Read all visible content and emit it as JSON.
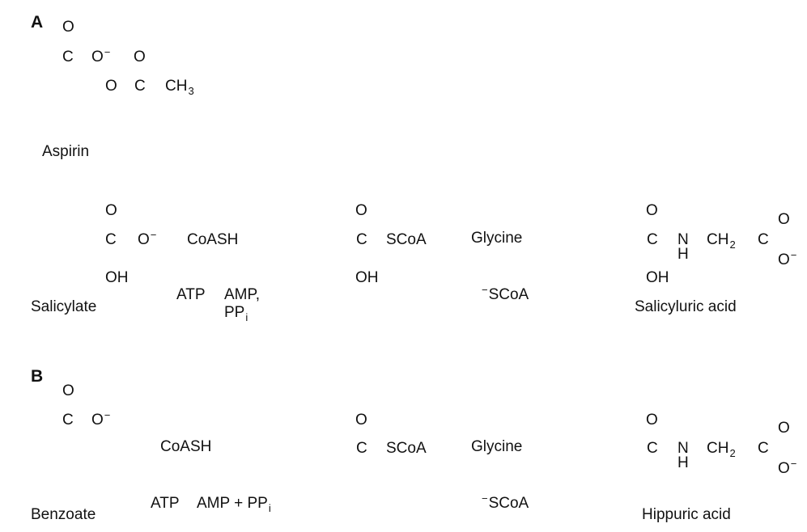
{
  "panel_a": {
    "letter": "A",
    "aspirin": {
      "o_top": "O",
      "c1": "C",
      "o_minus_base": "O",
      "minus": "−",
      "o_carbonyl": "O",
      "o_ester": "O",
      "c2": "C",
      "ch3_base": "CH",
      "ch3_sub": "3",
      "name": "Aspirin"
    },
    "salicylate": {
      "o_top": "O",
      "c": "C",
      "o_minus_base": "O",
      "minus": "−",
      "oh": "OH",
      "name": "Salicylate"
    },
    "reaction1": {
      "coash": "CoASH",
      "atp": "ATP",
      "amp": "AMP,",
      "ppi_base": "PP",
      "ppi_sub": "i"
    },
    "salicyl_coa": {
      "o_top": "O",
      "c": "C",
      "scoa": "SCoA",
      "oh": "OH"
    },
    "reaction2": {
      "glycine": "Glycine",
      "scoa_minus": "−",
      "scoa_base": "SCoA"
    },
    "salicyluric": {
      "o_top": "O",
      "c": "C",
      "n": "N",
      "h": "H",
      "ch2_base": "CH",
      "ch2_sub": "2",
      "c2": "C",
      "o_right": "O",
      "o_minus_base": "O",
      "minus": "−",
      "oh": "OH",
      "name": "Salicyluric acid"
    }
  },
  "panel_b": {
    "letter": "B",
    "benzoate": {
      "o_top": "O",
      "c": "C",
      "o_minus_base": "O",
      "minus": "−",
      "name": "Benzoate"
    },
    "reaction1": {
      "coash": "CoASH",
      "atp": "ATP",
      "amp_ppi_base": "AMP + PP",
      "ppi_sub": "i"
    },
    "benzoyl_coa": {
      "o_top": "O",
      "c": "C",
      "scoa": "SCoA"
    },
    "reaction2": {
      "glycine": "Glycine",
      "scoa_minus": "−",
      "scoa_base": "SCoA"
    },
    "hippuric": {
      "o_top": "O",
      "c": "C",
      "n": "N",
      "h": "H",
      "ch2_base": "CH",
      "ch2_sub": "2",
      "c2": "C",
      "o_right": "O",
      "o_minus_base": "O",
      "minus": "−",
      "name": "Hippuric acid"
    }
  }
}
